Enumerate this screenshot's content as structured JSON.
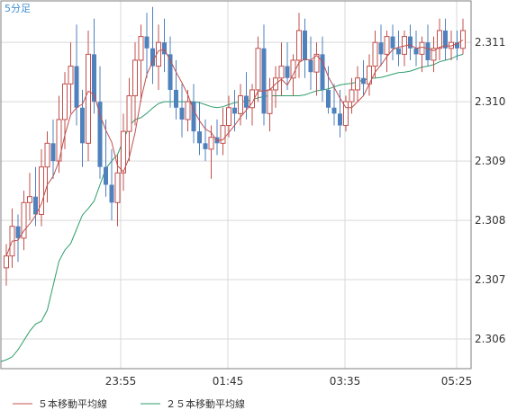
{
  "timeframe_label": "5分足",
  "chart_data": {
    "type": "candlestick",
    "y_range": [
      2.3055,
      2.3117
    ],
    "y_ticks": [
      "2.311",
      "2.310",
      "2.309",
      "2.308",
      "2.307",
      "2.306"
    ],
    "x_ticks": [
      "23:55",
      "01:45",
      "03:35",
      "05:25"
    ],
    "grid": true,
    "legend_position": "bottom-left",
    "colors": {
      "up": "#c0504d",
      "down": "#4f81bd",
      "ma5": "#c0504d",
      "ma25": "#2e9e6b",
      "grid": "#d9d9d9",
      "axis": "#7f7f7f"
    },
    "series": [
      {
        "name": "５本移動平均線",
        "type": "line"
      },
      {
        "name": "２５本移動平均線",
        "type": "line"
      }
    ],
    "candles": [
      [
        2.3072,
        2.3076,
        2.3069,
        2.3074
      ],
      [
        2.3074,
        2.3082,
        2.3072,
        2.3079
      ],
      [
        2.3079,
        2.3081,
        2.3073,
        2.3077
      ],
      [
        2.3077,
        2.3085,
        2.3075,
        2.3083
      ],
      [
        2.3083,
        2.3088,
        2.308,
        2.3084
      ],
      [
        2.3084,
        2.3089,
        2.3079,
        2.3081
      ],
      [
        2.3081,
        2.3092,
        2.3079,
        2.3089
      ],
      [
        2.3089,
        2.3095,
        2.3083,
        2.3093
      ],
      [
        2.3093,
        2.3097,
        2.3087,
        2.309
      ],
      [
        2.309,
        2.3101,
        2.3088,
        2.3097
      ],
      [
        2.3097,
        2.3105,
        2.3092,
        2.3103
      ],
      [
        2.3103,
        2.311,
        2.3098,
        2.3106
      ],
      [
        2.3106,
        2.3113,
        2.3096,
        2.3099
      ],
      [
        2.3099,
        2.3102,
        2.3089,
        2.3093
      ],
      [
        2.3093,
        2.3112,
        2.309,
        2.3108
      ],
      [
        2.3108,
        2.3114,
        2.3098,
        2.31
      ],
      [
        2.31,
        2.3106,
        2.3087,
        2.3089
      ],
      [
        2.3089,
        2.3097,
        2.3084,
        2.3086
      ],
      [
        2.3086,
        2.3092,
        2.308,
        2.3083
      ],
      [
        2.3083,
        2.3091,
        2.3079,
        2.3088
      ],
      [
        2.3088,
        2.3098,
        2.3085,
        2.3095
      ],
      [
        2.3095,
        2.3104,
        2.309,
        2.3101
      ],
      [
        2.3101,
        2.311,
        2.3096,
        2.3107
      ],
      [
        2.3107,
        2.3113,
        2.31,
        2.3111
      ],
      [
        2.3111,
        2.3115,
        2.3104,
        2.3109
      ],
      [
        2.3109,
        2.3116,
        2.3103,
        2.3106
      ],
      [
        2.3106,
        2.3113,
        2.3102,
        2.311
      ],
      [
        2.311,
        2.3114,
        2.3105,
        2.3108
      ],
      [
        2.3108,
        2.3111,
        2.3099,
        2.3102
      ],
      [
        2.3102,
        2.3107,
        2.3097,
        2.3099
      ],
      [
        2.3099,
        2.3103,
        2.3094,
        2.3097
      ],
      [
        2.3097,
        2.3102,
        2.3095,
        2.31
      ],
      [
        2.31,
        2.3103,
        2.3093,
        2.3095
      ],
      [
        2.3095,
        2.31,
        2.3091,
        2.3093
      ],
      [
        2.3093,
        2.3097,
        2.309,
        2.3092
      ],
      [
        2.3092,
        2.3096,
        2.3087,
        2.3094
      ],
      [
        2.3094,
        2.3097,
        2.3091,
        2.3093
      ],
      [
        2.3093,
        2.3099,
        2.3091,
        2.3096
      ],
      [
        2.3096,
        2.3101,
        2.3094,
        2.3099
      ],
      [
        2.3099,
        2.3102,
        2.3095,
        2.3098
      ],
      [
        2.3098,
        2.3103,
        2.3096,
        2.3101
      ],
      [
        2.3101,
        2.3105,
        2.3097,
        2.3099
      ],
      [
        2.3099,
        2.3103,
        2.3096,
        2.3102
      ],
      [
        2.3102,
        2.3111,
        2.31,
        2.3109
      ],
      [
        2.3109,
        2.3113,
        2.3096,
        2.3098
      ],
      [
        2.3098,
        2.3104,
        2.3095,
        2.3102
      ],
      [
        2.3102,
        2.3106,
        2.3099,
        2.3104
      ],
      [
        2.3104,
        2.311,
        2.3101,
        2.3106
      ],
      [
        2.3106,
        2.311,
        2.3102,
        2.3104
      ],
      [
        2.3104,
        2.3108,
        2.3101,
        2.3107
      ],
      [
        2.3107,
        2.3115,
        2.3104,
        2.3112
      ],
      [
        2.3112,
        2.3114,
        2.3104,
        2.3107
      ],
      [
        2.3107,
        2.3111,
        2.3102,
        2.3105
      ],
      [
        2.3105,
        2.311,
        2.3101,
        2.3108
      ],
      [
        2.3108,
        2.3111,
        2.31,
        2.3102
      ],
      [
        2.3102,
        2.3106,
        2.3098,
        2.3099
      ],
      [
        2.3099,
        2.3103,
        2.3096,
        2.3098
      ],
      [
        2.3098,
        2.3102,
        2.3094,
        2.3096
      ],
      [
        2.3096,
        2.3101,
        2.3095,
        2.31
      ],
      [
        2.31,
        2.3104,
        2.3098,
        2.3102
      ],
      [
        2.3102,
        2.3106,
        2.31,
        2.3104
      ],
      [
        2.3104,
        2.3107,
        2.3101,
        2.3103
      ],
      [
        2.3103,
        2.3108,
        2.3101,
        2.3106
      ],
      [
        2.3106,
        2.3112,
        2.3104,
        2.311
      ],
      [
        2.311,
        2.3113,
        2.3106,
        2.3108
      ],
      [
        2.3108,
        2.3112,
        2.3105,
        2.3111
      ],
      [
        2.3111,
        2.3113,
        2.3107,
        2.3109
      ],
      [
        2.3109,
        2.3112,
        2.3106,
        2.3108
      ],
      [
        2.3108,
        2.3112,
        2.3106,
        2.3111
      ],
      [
        2.3111,
        2.3113,
        2.3107,
        2.3109
      ],
      [
        2.3109,
        2.3112,
        2.3106,
        2.3108
      ],
      [
        2.3108,
        2.3111,
        2.3105,
        2.311
      ],
      [
        2.311,
        2.3113,
        2.3106,
        2.3107
      ],
      [
        2.3107,
        2.3111,
        2.3105,
        2.3109
      ],
      [
        2.3109,
        2.3114,
        2.3107,
        2.3112
      ],
      [
        2.3112,
        2.3114,
        2.3107,
        2.3109
      ],
      [
        2.3109,
        2.3112,
        2.3107,
        2.311
      ],
      [
        2.311,
        2.3112,
        2.3107,
        2.3109
      ],
      [
        2.3109,
        2.3114,
        2.3108,
        2.3112
      ]
    ],
    "ma25_anchors": [
      [
        0,
        2.30565
      ],
      [
        6,
        2.3063
      ],
      [
        10,
        2.3075
      ],
      [
        14,
        2.3082
      ],
      [
        18,
        2.309
      ],
      [
        22,
        2.3097
      ],
      [
        27,
        2.31
      ],
      [
        32,
        2.31
      ],
      [
        36,
        2.3099
      ],
      [
        40,
        2.31
      ],
      [
        45,
        2.3101
      ],
      [
        50,
        2.3101
      ],
      [
        54,
        2.3102
      ],
      [
        58,
        2.3103
      ],
      [
        63,
        2.3104
      ],
      [
        68,
        2.3105
      ],
      [
        72,
        2.3106
      ],
      [
        75,
        2.3107
      ],
      [
        78,
        2.3108
      ]
    ]
  },
  "legend": {
    "ma5_label": "５本移動平均線",
    "ma25_label": "２５本移動平均線"
  }
}
